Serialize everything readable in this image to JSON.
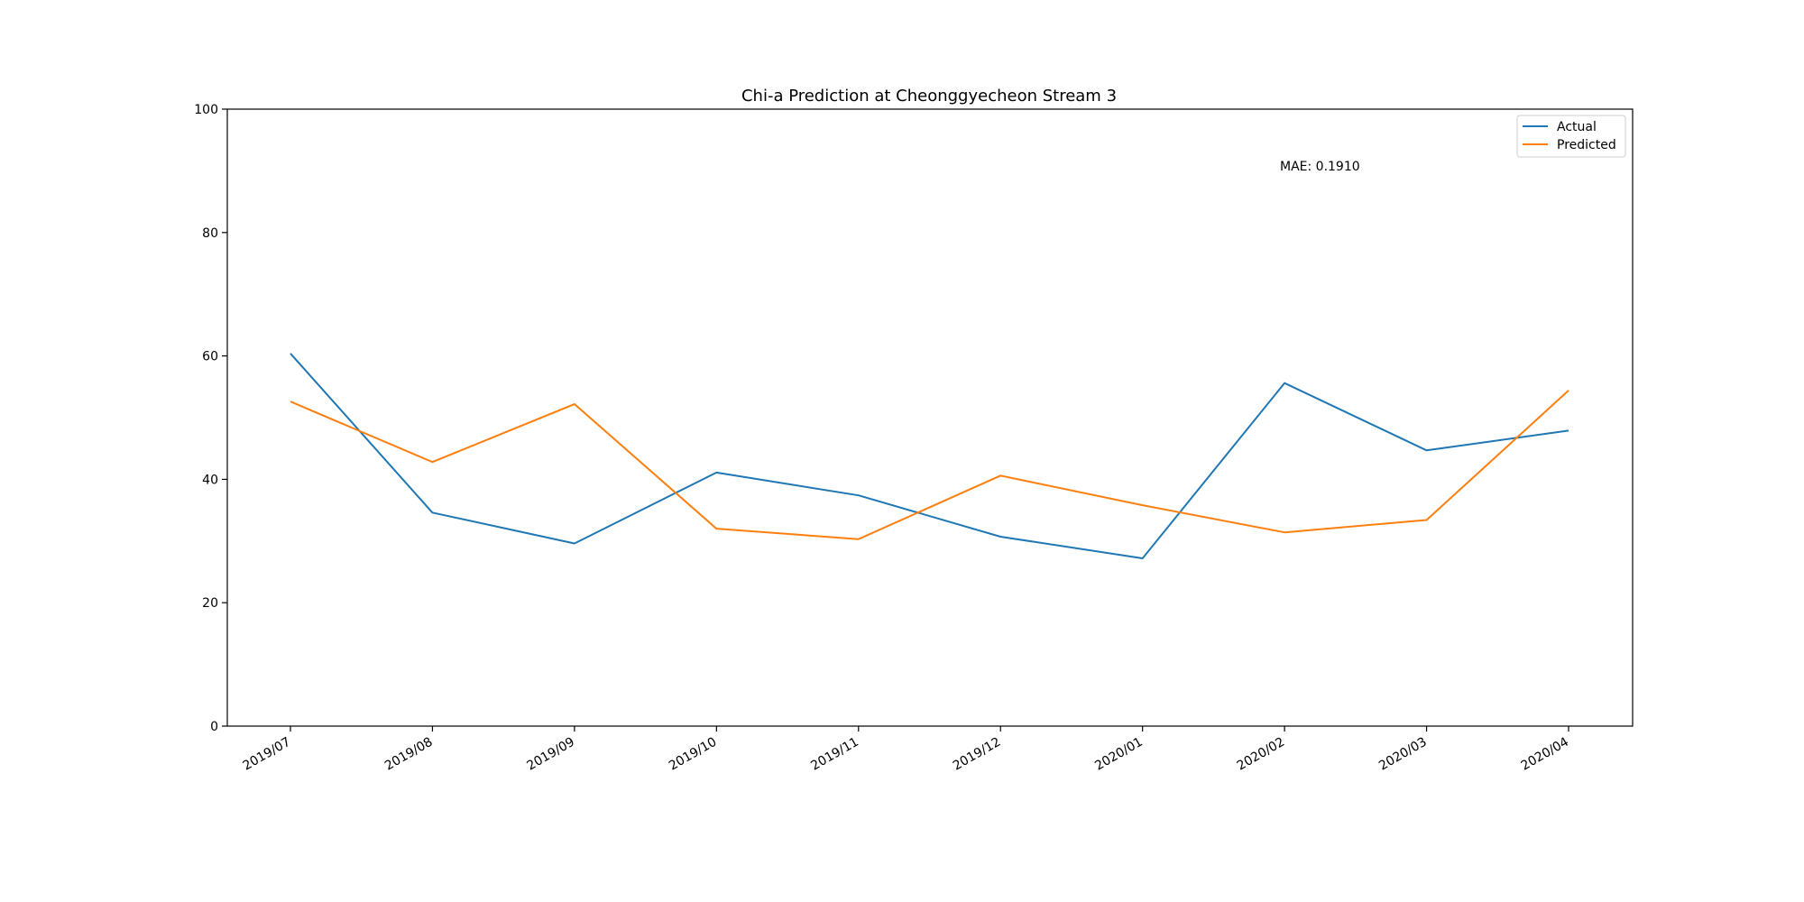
{
  "chart_data": {
    "type": "line",
    "title": "Chi-a Prediction at Cheonggyecheon Stream 3",
    "xlabel": "",
    "ylabel": "",
    "categories": [
      "2019/07",
      "2019/08",
      "2019/09",
      "2019/10",
      "2019/11",
      "2019/12",
      "2020/01",
      "2020/02",
      "2020/03",
      "2020/04"
    ],
    "series": [
      {
        "name": "Actual",
        "color": "#1f77b4",
        "values": [
          60.4,
          34.6,
          29.6,
          41.1,
          37.4,
          30.7,
          27.2,
          55.6,
          44.7,
          47.9
        ]
      },
      {
        "name": "Predicted",
        "color": "#ff7f0e",
        "values": [
          52.6,
          42.8,
          52.2,
          32.0,
          30.3,
          40.6,
          35.8,
          31.4,
          33.4,
          54.4
        ]
      }
    ],
    "ylim": [
      0,
      100
    ],
    "yticks": [
      0,
      20,
      40,
      60,
      80,
      100
    ],
    "grid": false,
    "legend_position": "upper right",
    "annotation": "MAE: 0.1910"
  }
}
